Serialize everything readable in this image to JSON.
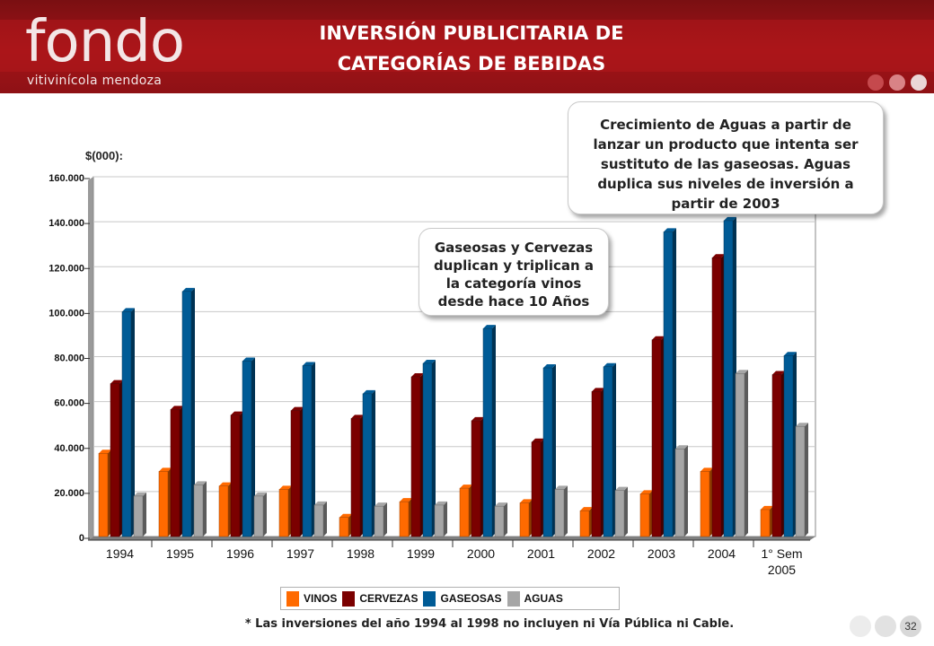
{
  "header": {
    "logo_main": "fondo",
    "logo_sub": "vitivinícola mendoza",
    "title_line1": "INVERSIÓN PUBLICITARIA DE",
    "title_line2": "CATEGORÍAS DE BEBIDAS"
  },
  "colors": {
    "header": "#a31318",
    "vinos": "#ff6a00",
    "cervezas": "#7b0000",
    "gaseosas": "#005b96",
    "aguas": "#a6a6a6",
    "plot_bg": "#ffffff",
    "grid": "#c8c8c8"
  },
  "chart_data": {
    "type": "bar",
    "ylabel": "$(000):",
    "ylim": [
      0,
      160000
    ],
    "yticks": [
      "0",
      "20.000",
      "40.000",
      "60.000",
      "80.000",
      "100.000",
      "120.000",
      "140.000",
      "160.000"
    ],
    "ytick_values": [
      0,
      20000,
      40000,
      60000,
      80000,
      100000,
      120000,
      140000,
      160000
    ],
    "categories": [
      "1994",
      "1995",
      "1996",
      "1997",
      "1998",
      "1999",
      "2000",
      "2001",
      "2002",
      "2003",
      "2004",
      "1° Sem 2005"
    ],
    "category_lines": [
      [
        "1994"
      ],
      [
        "1995"
      ],
      [
        "1996"
      ],
      [
        "1997"
      ],
      [
        "1998"
      ],
      [
        "1999"
      ],
      [
        "2000"
      ],
      [
        "2001"
      ],
      [
        "2002"
      ],
      [
        "2003"
      ],
      [
        "2004"
      ],
      [
        "1° Sem",
        "2005"
      ]
    ],
    "series": [
      {
        "name": "VINOS",
        "color": "#ff6a00",
        "values": [
          37000,
          29000,
          22500,
          21000,
          8500,
          15500,
          21500,
          15000,
          11500,
          19000,
          29000,
          12000
        ]
      },
      {
        "name": "CERVEZAS",
        "color": "#7b0000",
        "values": [
          68000,
          56500,
          54000,
          56000,
          52500,
          71000,
          51500,
          42000,
          64500,
          87500,
          124000,
          72000
        ]
      },
      {
        "name": "GASEOSAS",
        "color": "#005b96",
        "values": [
          100000,
          109000,
          78000,
          76000,
          63500,
          77000,
          92500,
          75000,
          75500,
          135500,
          140500,
          80500
        ]
      },
      {
        "name": "AGUAS",
        "color": "#a6a6a6",
        "values": [
          18000,
          23000,
          18000,
          14000,
          13500,
          14000,
          13500,
          21000,
          20500,
          39000,
          72500,
          49000
        ]
      }
    ],
    "grid": true,
    "legend_position": "bottom"
  },
  "callouts": {
    "aguas": {
      "lines": [
        "Crecimiento de Aguas a partir de",
        "lanzar un producto que intenta ser",
        "sustituto de las gaseosas. Aguas",
        "duplica  sus niveles de inversión a",
        "partir de 2003"
      ]
    },
    "gaseosas": {
      "lines": [
        "Gaseosas y Cervezas",
        "duplican  y triplican a",
        "la categoría vinos",
        "desde hace 10 Años"
      ]
    }
  },
  "footnote": "* Las inversiones del año 1994 al 1998 no incluyen ni Vía Pública ni Cable.",
  "page_number": "32"
}
